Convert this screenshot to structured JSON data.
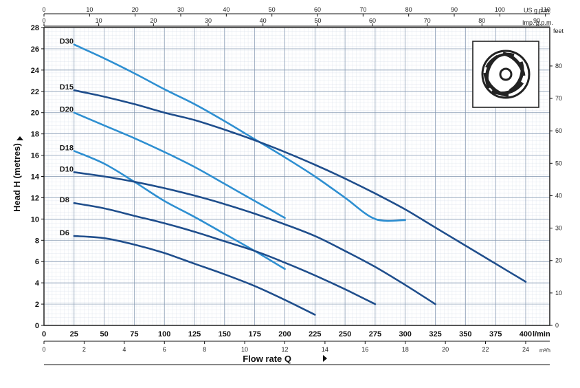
{
  "chart_data": {
    "type": "line",
    "ylabel": "Head H (metres)",
    "xlabel": "Flow rate Q",
    "x_unit_label": "l/min",
    "m3h_unit_label": "m³/h",
    "feet_unit_label": "feet",
    "us_gpm_unit_label": "US g.p.m.",
    "imp_gpm_unit_label": "Imp. g.p.m.",
    "xlim": [
      0,
      420
    ],
    "ylim": [
      0,
      28
    ],
    "grid": true,
    "colors": {
      "dark": "#1f4e8c",
      "light": "#2e8fd1"
    },
    "x_ticks_lmin": [
      0,
      25,
      50,
      75,
      100,
      125,
      150,
      175,
      200,
      225,
      250,
      275,
      300,
      325,
      350,
      375,
      400
    ],
    "x_ticks_m3h": [
      0,
      2,
      4,
      6,
      8,
      10,
      12,
      14,
      16,
      18,
      20,
      22,
      24
    ],
    "y_ticks_m": [
      0,
      2,
      4,
      6,
      8,
      10,
      12,
      14,
      16,
      18,
      20,
      22,
      24,
      26,
      28
    ],
    "y_ticks_feet": [
      0,
      10,
      20,
      30,
      40,
      50,
      60,
      70,
      80
    ],
    "x_ticks_us_gpm": [
      0,
      10,
      20,
      30,
      40,
      50,
      60,
      70,
      80,
      90,
      100,
      110
    ],
    "x_ticks_imp_gpm": [
      0,
      10,
      20,
      30,
      40,
      50,
      60,
      70,
      80,
      90
    ],
    "series": [
      {
        "name": "D30",
        "color": "light",
        "x": [
          25,
          50,
          75,
          100,
          125,
          150,
          175,
          200,
          225,
          250,
          275,
          300
        ],
        "y": [
          26.4,
          25.1,
          23.7,
          22.2,
          20.8,
          19.2,
          17.5,
          15.8,
          14.0,
          12.0,
          10.0,
          9.9
        ]
      },
      {
        "name": "D15",
        "color": "dark",
        "x": [
          25,
          50,
          75,
          100,
          125,
          150,
          175,
          200,
          225,
          250,
          275,
          300,
          325,
          350,
          375,
          400
        ],
        "y": [
          22.1,
          21.5,
          20.8,
          20.0,
          19.3,
          18.4,
          17.4,
          16.3,
          15.1,
          13.8,
          12.4,
          10.9,
          9.2,
          7.5,
          5.8,
          4.1
        ]
      },
      {
        "name": "D20",
        "color": "light",
        "x": [
          25,
          50,
          75,
          100,
          125,
          150,
          175,
          200
        ],
        "y": [
          20.0,
          18.8,
          17.6,
          16.3,
          14.9,
          13.3,
          11.7,
          10.1
        ]
      },
      {
        "name": "D18",
        "color": "light",
        "x": [
          25,
          50,
          75,
          100,
          125,
          150,
          175,
          200
        ],
        "y": [
          16.4,
          15.2,
          13.5,
          11.7,
          10.2,
          8.6,
          7.0,
          5.3
        ]
      },
      {
        "name": "D10",
        "color": "dark",
        "x": [
          25,
          50,
          75,
          100,
          125,
          150,
          175,
          200,
          225,
          250,
          275,
          300,
          325
        ],
        "y": [
          14.4,
          14.0,
          13.5,
          12.9,
          12.2,
          11.4,
          10.5,
          9.5,
          8.4,
          7.0,
          5.5,
          3.8,
          2.0
        ]
      },
      {
        "name": "D8",
        "color": "dark",
        "x": [
          25,
          50,
          75,
          100,
          125,
          150,
          175,
          200,
          225,
          250,
          275
        ],
        "y": [
          11.5,
          11.0,
          10.3,
          9.6,
          8.8,
          7.9,
          7.0,
          5.9,
          4.7,
          3.4,
          2.0
        ]
      },
      {
        "name": "D6",
        "color": "dark",
        "x": [
          25,
          50,
          75,
          100,
          125,
          150,
          175,
          200,
          225
        ],
        "y": [
          8.4,
          8.2,
          7.6,
          6.8,
          5.8,
          4.8,
          3.7,
          2.4,
          1.0
        ]
      }
    ]
  }
}
